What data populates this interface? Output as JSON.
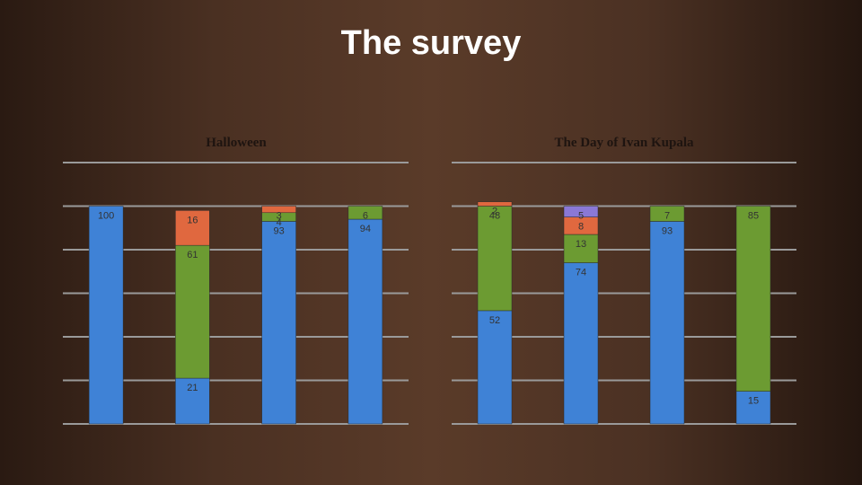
{
  "title": "The survey",
  "chart_data": [
    {
      "type": "stacked-bar",
      "title": "Halloween",
      "ylim": [
        0,
        120
      ],
      "yticks": [
        0,
        20,
        40,
        60,
        80,
        100,
        120
      ],
      "grid": true,
      "series": [
        {
          "color": "#3f82d6",
          "values": [
            100,
            21,
            93,
            94
          ]
        },
        {
          "color": "#6c9b32",
          "values": [
            null,
            61,
            4,
            6
          ]
        },
        {
          "color": "#e0683f",
          "values": [
            null,
            16,
            3,
            null
          ]
        },
        {
          "color": "#8a78d6",
          "values": [
            null,
            null,
            null,
            null
          ]
        }
      ]
    },
    {
      "type": "stacked-bar",
      "title": "The Day of  Ivan Kupala",
      "ylim": [
        0,
        120
      ],
      "yticks": [
        0,
        20,
        40,
        60,
        80,
        100,
        120
      ],
      "grid": true,
      "series": [
        {
          "color": "#3f82d6",
          "values": [
            52,
            74,
            93,
            15
          ]
        },
        {
          "color": "#6c9b32",
          "values": [
            48,
            13,
            7,
            85
          ]
        },
        {
          "color": "#e0683f",
          "values": [
            2,
            8,
            null,
            null
          ]
        },
        {
          "color": "#8a78d6",
          "values": [
            null,
            5,
            null,
            null
          ]
        }
      ]
    }
  ]
}
